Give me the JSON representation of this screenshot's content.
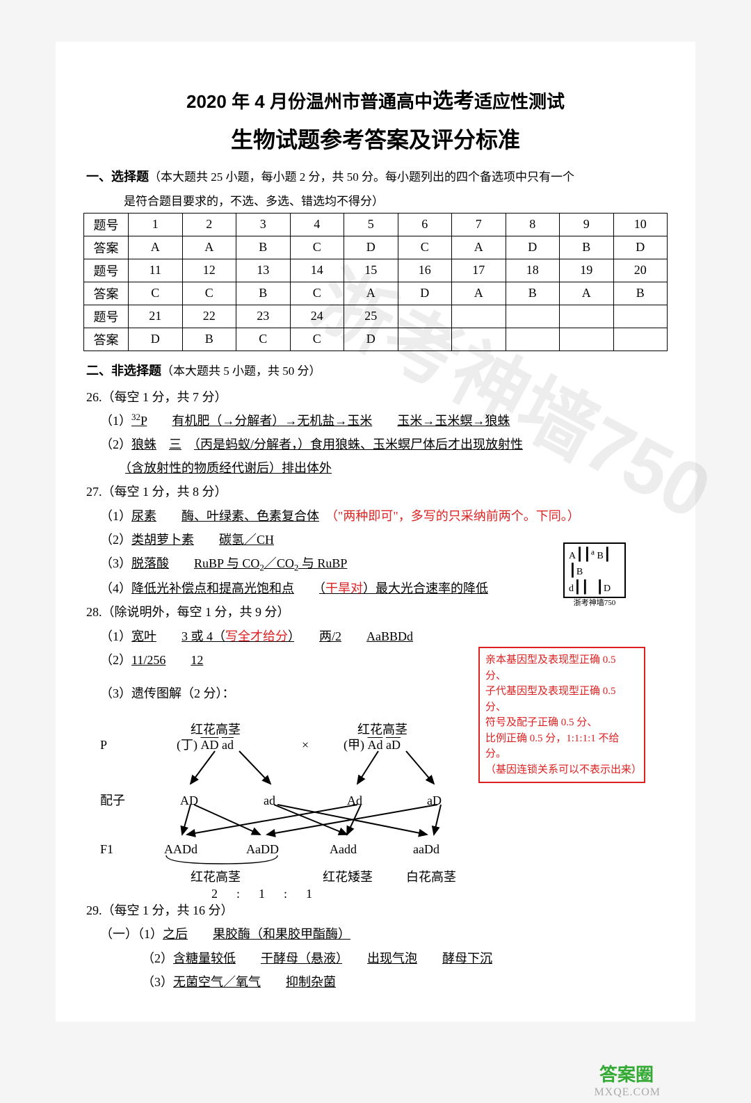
{
  "title_line1_pre": "2020 年 4 月份温州市普通高中",
  "title_line1_big": "选考",
  "title_line1_post": "适应性测试",
  "title_line2": "生物试题参考答案及评分标准",
  "section1_head_bold": "一、选择题",
  "section1_head_rest": "（本大题共 25 小题，每小题 2 分，共 50 分。每小题列出的四个备选项中只有一个",
  "section1_head_line2": "是符合题目要求的，不选、多选、错选均不得分）",
  "table": {
    "row_labels": [
      "题号",
      "答案",
      "题号",
      "答案",
      "题号",
      "答案"
    ],
    "rows": [
      [
        "1",
        "2",
        "3",
        "4",
        "5",
        "6",
        "7",
        "8",
        "9",
        "10"
      ],
      [
        "A",
        "A",
        "B",
        "C",
        "D",
        "C",
        "A",
        "D",
        "B",
        "D"
      ],
      [
        "11",
        "12",
        "13",
        "14",
        "15",
        "16",
        "17",
        "18",
        "19",
        "20"
      ],
      [
        "C",
        "C",
        "B",
        "C",
        "A",
        "D",
        "A",
        "B",
        "A",
        "B"
      ],
      [
        "21",
        "22",
        "23",
        "24",
        "25",
        "",
        "",
        "",
        "",
        ""
      ],
      [
        "D",
        "B",
        "C",
        "C",
        "D",
        "",
        "",
        "",
        "",
        ""
      ]
    ]
  },
  "section2_head_bold": "二、非选择题",
  "section2_head_rest": "（本大题共 5 小题，共 50 分）",
  "q26_head": "26.（每空 1 分，共 7 分）",
  "q26_1_a": "³²P",
  "q26_1_b": "有机肥（→分解者）→无机盐→玉米",
  "q26_1_c": "玉米→玉米螟→狼蛛",
  "q26_2_a": "狼蛛",
  "q26_2_b": "三",
  "q26_2_c": "（丙是蚂蚁/分解者，）食用狼蛛、玉米螟尸体后才出现放射性",
  "q26_2_d": "（含放射性的物质经代谢后）排出体外",
  "q27_head": "27.（每空 1 分，共 8 分）",
  "q27_1_a": "尿素",
  "q27_1_b": "酶、叶绿素、色素复合体",
  "q27_1_note": "（\"两种即可\"，多写的只采纳前两个。下同。）",
  "q27_2_a": "类胡萝卜素",
  "q27_2_b": "碳氢／CH",
  "q27_3_a": "脱落酸",
  "q27_3_b": "RuBP 与 CO₂／CO₂ 与 RuBP",
  "q27_4_a": "降低光补偿点和提高光饱和点",
  "q27_4_b": "（干旱对）最大光合速率的降低",
  "q28_head": "28.（除说明外，每空 1 分，共 9 分）",
  "q28_1_a": "宽叶",
  "q28_1_b": "3 或 4（写全才给分）",
  "q28_1_c": "两/2",
  "q28_1_d": "AaBBDd",
  "q28_2_a": "11/256",
  "q28_2_b": "12",
  "q28_3_head": "（3）遗传图解（2 分）：",
  "mini_box_caption": "浙考神墙750",
  "red_box": {
    "l1": "亲本基因型及表现型正确 0.5 分、",
    "l2": "子代基因型及表现型正确 0.5 分、",
    "l3": "符号及配子正确 0.5 分、",
    "l4": "比例正确 0.5 分，1:1:1:1 不给分。",
    "l5": "（基因连锁关系可以不表示出来）"
  },
  "gd": {
    "p_label": "P",
    "p_left_top": "红花高茎",
    "p_left_geno_l": "(丁)",
    "p_left_geno": "AD ad",
    "p_right_top": "红花高茎",
    "p_right_geno_l": "(甲)",
    "p_right_geno": "Ad aD",
    "cross": "×",
    "gamete_label": "配子",
    "g1": "AD",
    "g2": "ad",
    "g3": "Ad",
    "g4": "aD",
    "f1_label": "F1",
    "f1_1": "AADd",
    "f1_2": "AaDD",
    "f1_3": "Aadd",
    "f1_4": "aaDd",
    "ph1": "红花高茎",
    "ph2": "红花矮茎",
    "ph3": "白花高茎",
    "ratio": "2      :      1      :      1"
  },
  "q29_head": "29.（每空 1 分，共 16 分）",
  "q29_1_1_a": "之后",
  "q29_1_1_b": "果胶酶（和果胶甲酯酶）",
  "q29_1_2_a": "含糖量较低",
  "q29_1_2_b": "干酵母（悬液）",
  "q29_1_2_c": "出现气泡",
  "q29_1_2_d": "酵母下沉",
  "q29_1_3_a": "无菌空气／氧气",
  "q29_1_3_b": "抑制杂菌",
  "watermark_text": "浙考神墙750",
  "footer_wm1": "答案圈",
  "footer_wm2": "MXQE.COM"
}
